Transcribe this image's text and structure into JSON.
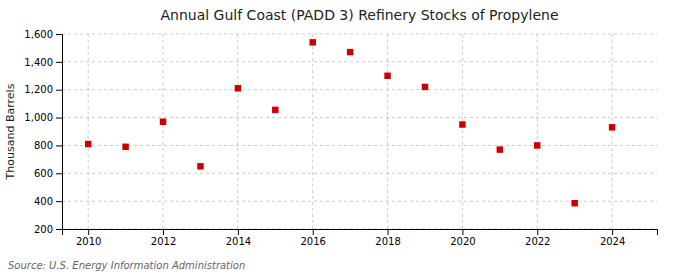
{
  "chart_data": {
    "type": "scatter",
    "title": "Annual Gulf Coast (PADD 3) Refinery Stocks of Propylene",
    "ylabel": "Thousand Barrels",
    "annotations": [
      "Source: U.S. Energy Information Administration"
    ],
    "x": [
      2010,
      2011,
      2012,
      2013,
      2014,
      2015,
      2016,
      2017,
      2018,
      2019,
      2020,
      2021,
      2022,
      2023,
      2024
    ],
    "values": [
      810,
      790,
      970,
      650,
      1210,
      1055,
      1540,
      1470,
      1300,
      1220,
      950,
      770,
      800,
      385,
      930
    ],
    "color": "#cc0000",
    "marker": "square",
    "xlim": [
      2009.3,
      2025.2
    ],
    "xticks": [
      2010,
      2012,
      2014,
      2016,
      2018,
      2020,
      2022,
      2024
    ],
    "ylim": [
      200,
      1600
    ],
    "yticks": [
      200,
      400,
      600,
      800,
      {
        "value": 1000,
        "label": "1,000"
      },
      {
        "value": 1200,
        "label": "1,200"
      },
      {
        "value": 1400,
        "label": "1,400"
      },
      {
        "value": 1600,
        "label": "1,600"
      }
    ],
    "grid": true
  }
}
